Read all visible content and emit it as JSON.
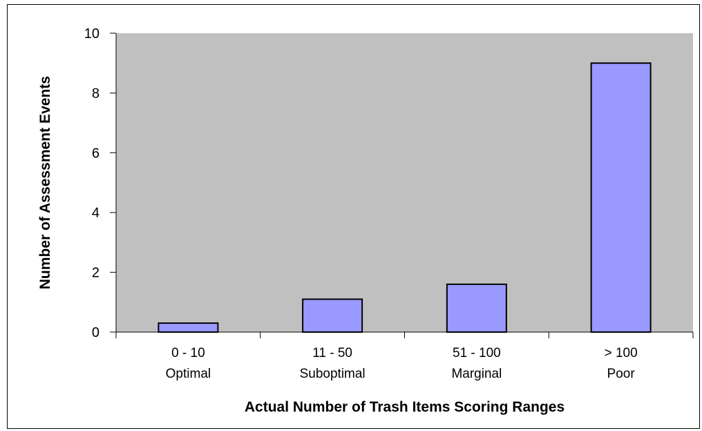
{
  "chart_data": {
    "type": "bar",
    "title": "",
    "xlabel": "Actual Number of Trash Items Scoring Ranges",
    "ylabel": "Number of Assessment Events",
    "categories": [
      [
        "0 - 10",
        "Optimal"
      ],
      [
        "11 - 50",
        "Suboptimal"
      ],
      [
        "51 - 100",
        "Marginal"
      ],
      [
        "> 100",
        "Poor"
      ]
    ],
    "values": [
      0.3,
      1.1,
      1.6,
      9.0
    ],
    "ylim": [
      0,
      10
    ],
    "yticks": [
      0,
      2,
      4,
      6,
      8,
      10
    ],
    "grid": false,
    "legend": "none",
    "colors": {
      "plot_background": "#c0c0c0",
      "bar_fill": "#9999ff",
      "bar_stroke": "#000000",
      "axis": "#000000"
    }
  }
}
